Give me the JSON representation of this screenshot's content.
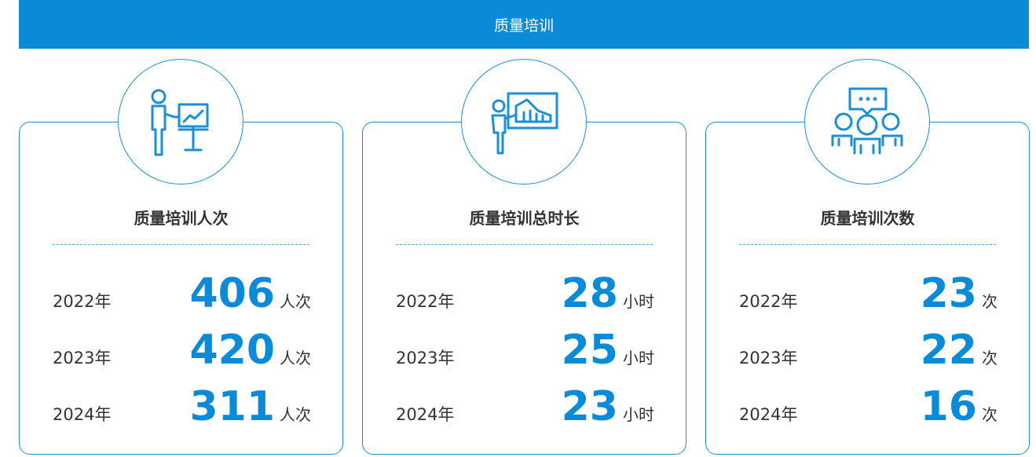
{
  "header": {
    "title": "质量培训"
  },
  "cards": [
    {
      "title": "质量培训人次",
      "rows": [
        {
          "year": "2022年",
          "value": 406,
          "unit": "人次"
        },
        {
          "year": "2023年",
          "value": 420,
          "unit": "人次"
        },
        {
          "year": "2024年",
          "value": 311,
          "unit": "人次"
        }
      ]
    },
    {
      "title": "质量培训总时长",
      "rows": [
        {
          "year": "2022年",
          "value": 28,
          "unit": "小时"
        },
        {
          "year": "2023年",
          "value": 25,
          "unit": "小时"
        },
        {
          "year": "2024年",
          "value": 23,
          "unit": "小时"
        }
      ]
    },
    {
      "title": "质量培训次数",
      "rows": [
        {
          "year": "2022年",
          "value": 23,
          "unit": "次"
        },
        {
          "year": "2023年",
          "value": 22,
          "unit": "次"
        },
        {
          "year": "2024年",
          "value": 16,
          "unit": "次"
        }
      ]
    }
  ]
}
